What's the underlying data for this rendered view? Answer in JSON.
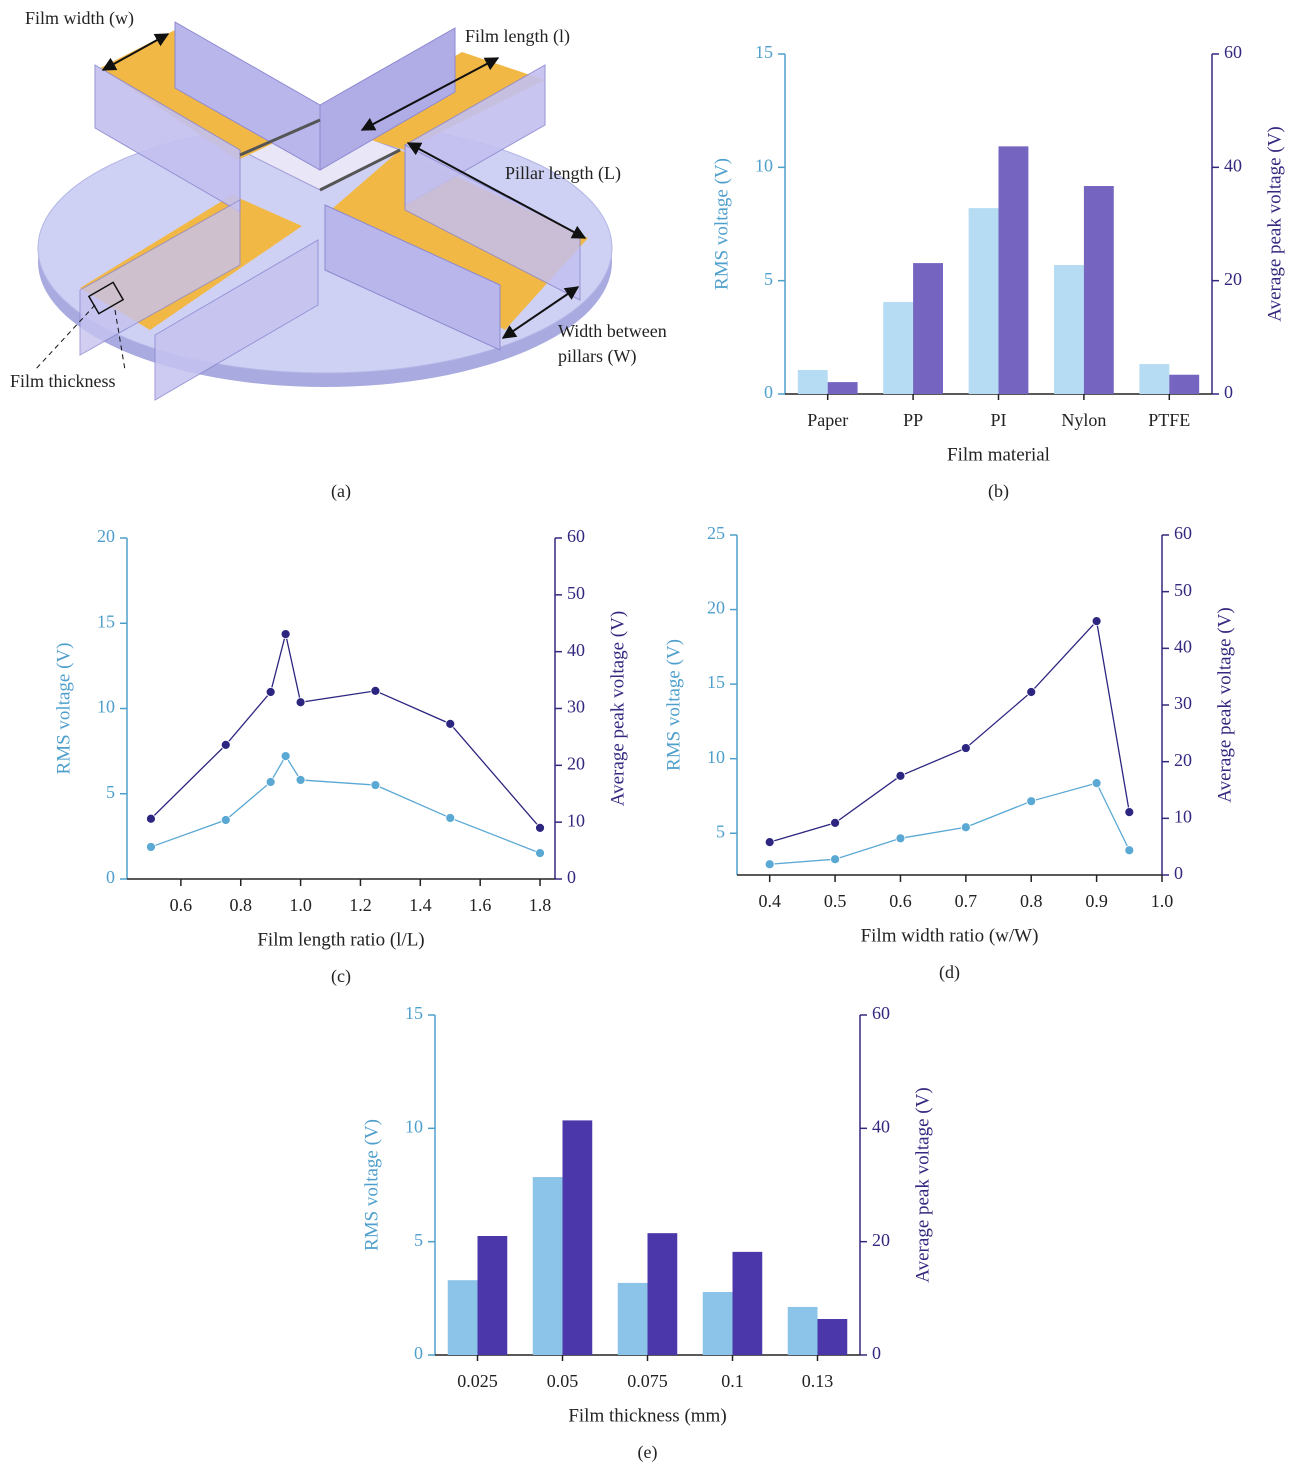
{
  "diagram": {
    "labels": [
      "Film width (w)",
      "Film length (l)",
      "Pillar length (L)",
      "Width between",
      "pillars (W)",
      "Film thickness"
    ],
    "caption": "(a)"
  },
  "chart_data": [
    {
      "type": "bar",
      "caption": "(b)",
      "x_label": "Film material",
      "y_label": "RMS voltage (V)",
      "y2_label": "Average peak voltage (V)",
      "categories": [
        "Paper",
        "PP",
        "PI",
        "Nylon",
        "PTFE"
      ],
      "series": [
        {
          "color": "#b5dcf2",
          "values": [
            1.06,
            4.06,
            8.2,
            5.69,
            1.32
          ]
        },
        {
          "color": "#7564c0",
          "axis": "y2",
          "values": [
            2.1,
            23.1,
            43.7,
            36.7,
            3.4
          ]
        }
      ],
      "ylim": [
        0,
        15
      ],
      "yticks": [
        0,
        5,
        10,
        15
      ],
      "y2lim": [
        0,
        60
      ],
      "y2ticks": [
        0,
        20,
        40,
        60
      ]
    },
    {
      "type": "line",
      "caption": "(c)",
      "x_label": "Film length ratio (l/L)",
      "y_label": "RMS voltage (V)",
      "y2_label": "Average peak voltage (V)",
      "x": [
        0.5,
        0.75,
        0.9,
        0.95,
        1.0,
        1.25,
        1.5,
        1.8
      ],
      "series": [
        {
          "color": "#5aa8d4",
          "values": [
            1.88,
            3.46,
            5.69,
            7.21,
            5.81,
            5.51,
            3.58,
            1.52
          ]
        },
        {
          "color": "#2d2680",
          "axis": "y2",
          "values": [
            10.6,
            23.6,
            32.9,
            43.1,
            31.1,
            33.1,
            27.3,
            9.0
          ]
        }
      ],
      "xlim": [
        0.42,
        1.85
      ],
      "xticks": [
        0.6,
        0.8,
        {
          "value": 1,
          "label": "1.0"
        },
        1.2,
        1.4,
        1.6,
        1.8
      ],
      "ylim": [
        0,
        20
      ],
      "yticks": [
        0,
        5,
        10,
        15,
        20
      ],
      "y2lim": [
        0,
        60
      ],
      "y2ticks": [
        0,
        10,
        20,
        30,
        40,
        50,
        60
      ]
    },
    {
      "type": "line",
      "caption": "(d)",
      "x_label": "Film width ratio (w/W)",
      "y_label": "RMS voltage (V)",
      "y2_label": "Average peak voltage (V)",
      "x": [
        0.4,
        0.5,
        0.6,
        0.7,
        0.8,
        0.9,
        0.95
      ],
      "series": [
        {
          "color": "#5aa8d4",
          "values": [
            2.92,
            3.26,
            4.66,
            5.4,
            7.15,
            8.36,
            3.86
          ]
        },
        {
          "color": "#2d2680",
          "axis": "y2",
          "values": [
            5.8,
            9.2,
            17.5,
            22.4,
            32.3,
            44.8,
            11.1
          ]
        }
      ],
      "xlim": [
        0.35,
        1.0
      ],
      "xticks": [
        0.4,
        0.5,
        0.6,
        0.7,
        0.8,
        0.9,
        {
          "value": 1,
          "label": "1.0"
        }
      ],
      "ylim": [
        2.2,
        25
      ],
      "yticks": [
        5,
        10,
        15,
        20,
        25
      ],
      "y2lim": [
        0,
        60
      ],
      "y2ticks": [
        0,
        10,
        20,
        30,
        40,
        50,
        60
      ]
    },
    {
      "type": "bar",
      "caption": "(e)",
      "x_label": "Film thickness (mm)",
      "y_label": "RMS voltage (V)",
      "y2_label": "Average peak voltage (V)",
      "categories": [
        "0.025",
        "0.05",
        "0.075",
        "0.1",
        "0.13"
      ],
      "series": [
        {
          "color": "#8cc3e8",
          "values": [
            3.3,
            7.85,
            3.18,
            2.78,
            2.12
          ]
        },
        {
          "color": "#4b36aa",
          "axis": "y2",
          "values": [
            21.0,
            41.4,
            21.5,
            18.2,
            6.35
          ]
        }
      ],
      "ylim": [
        0,
        15
      ],
      "yticks": [
        0,
        5,
        10,
        15
      ],
      "y2lim": [
        0,
        60
      ],
      "y2ticks": [
        0,
        20,
        40,
        60
      ]
    }
  ]
}
